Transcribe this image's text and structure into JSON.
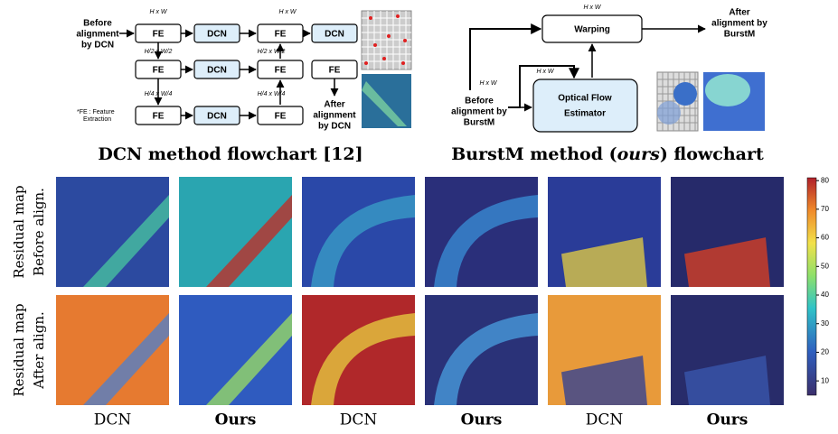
{
  "dcn_flowchart": {
    "input_label": [
      "Before",
      "alignment",
      "by DCN"
    ],
    "output_label": [
      "After",
      "alignment",
      "by DCN"
    ],
    "note": [
      "*FE : Feature",
      "Extraction"
    ],
    "blocks": [
      "FE",
      "DCN",
      "FE",
      "DCN",
      "FE",
      "DCN",
      "FE",
      "FE",
      "FE",
      "DCN",
      "FE"
    ],
    "dims": [
      "H x W",
      "H/2 x W/2",
      "H/4 x W/4",
      "H x W",
      "H/2 x W/2",
      "H/4 x W/4"
    ],
    "caption": "DCN method flowchart [12]"
  },
  "burstm_flowchart": {
    "warping": "Warping",
    "estimator": [
      "Optical Flow",
      "Estimator"
    ],
    "input_label": [
      "Before",
      "alignment by",
      "BurstM"
    ],
    "output_label": [
      "After",
      "alignment by",
      "BurstM"
    ],
    "dims": [
      "H x W",
      "H x W",
      "H x W"
    ],
    "caption": [
      "BurstM method (",
      "ours",
      ") flowchart"
    ]
  },
  "row_labels": [
    [
      "Residual map",
      "Before align."
    ],
    [
      "Residual map",
      "After align."
    ]
  ],
  "column_labels": [
    "DCN",
    "Ours",
    "DCN",
    "Ours",
    "DCN",
    "Ours"
  ],
  "colorbar": {
    "lim": [
      5,
      81
    ],
    "ticks": [
      10,
      20,
      30,
      40,
      50,
      60,
      70,
      80
    ]
  }
}
